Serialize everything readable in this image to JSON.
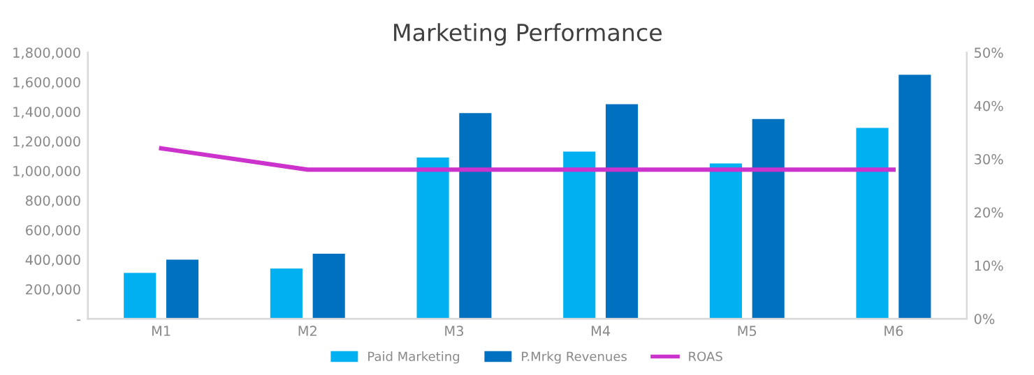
{
  "chart_data": {
    "type": "bar",
    "title": "Marketing Performance",
    "categories": [
      "M1",
      "M2",
      "M3",
      "M4",
      "M5",
      "M6"
    ],
    "series": [
      {
        "name": "Paid Marketing",
        "color": "#00b0f0",
        "values": [
          310000,
          340000,
          1090000,
          1130000,
          1050000,
          1290000
        ]
      },
      {
        "name": "P.Mrkg Revenues",
        "color": "#0070c0",
        "values": [
          400000,
          440000,
          1390000,
          1450000,
          1350000,
          1650000
        ]
      },
      {
        "name": "ROAS",
        "color": "#cc33cc",
        "type": "line",
        "axis": "y2",
        "values": [
          32,
          28,
          28,
          28,
          28,
          28
        ]
      }
    ],
    "ylim": [
      0,
      1800000
    ],
    "yticks": [
      {
        "value": 0,
        "label": "-"
      },
      {
        "value": 200000,
        "label": "200,000"
      },
      {
        "value": 400000,
        "label": "400,000"
      },
      {
        "value": 600000,
        "label": "600,000"
      },
      {
        "value": 800000,
        "label": "800,000"
      },
      {
        "value": 1000000,
        "label": "1,000,000"
      },
      {
        "value": 1200000,
        "label": "1,200,000"
      },
      {
        "value": 1400000,
        "label": "1,400,000"
      },
      {
        "value": 1600000,
        "label": "1,600,000"
      },
      {
        "value": 1800000,
        "label": "1,800,000"
      }
    ],
    "y2lim": [
      0,
      50
    ],
    "y2ticks": [
      {
        "value": 0,
        "label": "0%"
      },
      {
        "value": 10,
        "label": "10%"
      },
      {
        "value": 20,
        "label": "20%"
      },
      {
        "value": 30,
        "label": "30%"
      },
      {
        "value": 40,
        "label": "40%"
      },
      {
        "value": 50,
        "label": "50%"
      }
    ],
    "grid": false,
    "legend": "bottom",
    "marker": "none"
  }
}
